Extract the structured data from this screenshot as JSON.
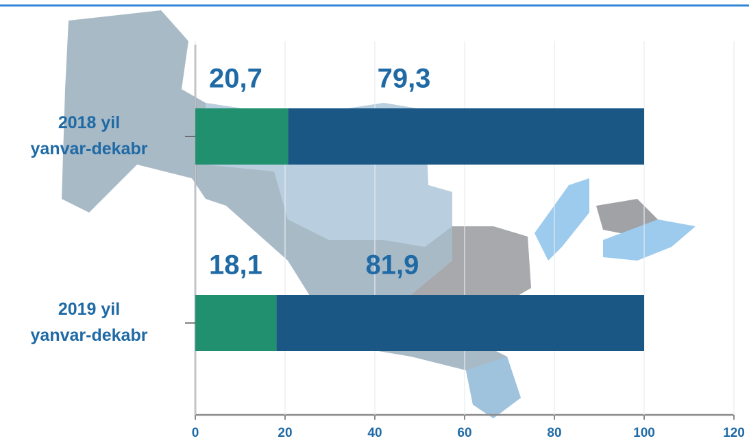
{
  "chart_data": {
    "type": "bar",
    "orientation": "horizontal",
    "stacked": true,
    "categories": [
      "2018 yil\nyanvar-dekabr",
      "2019 yil\nyanvar-dekabr"
    ],
    "series": [
      {
        "color": "#21906f",
        "values": [
          20.7,
          18.1
        ],
        "value_labels": [
          "20,7",
          "18,1"
        ]
      },
      {
        "color": "#1a5785",
        "values": [
          79.3,
          81.9
        ],
        "value_labels": [
          "79,3",
          "81,9"
        ]
      }
    ],
    "xlim": [
      0,
      120
    ],
    "xticks": [
      0,
      20,
      40,
      60,
      80,
      100,
      120
    ],
    "grid": true
  }
}
